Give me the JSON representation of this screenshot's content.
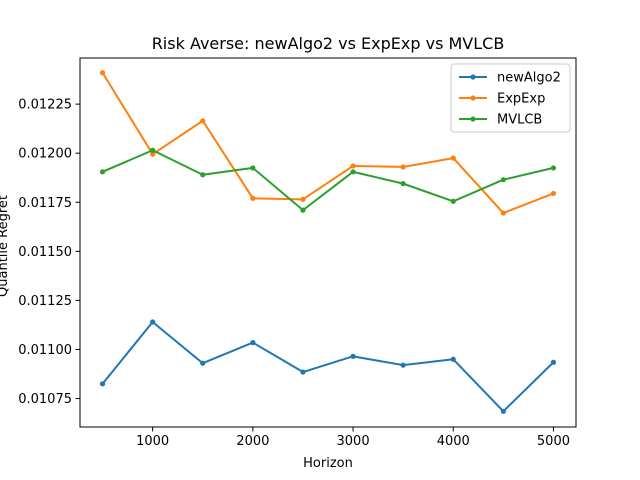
{
  "chart_data": {
    "type": "line",
    "title": "Risk Averse: newAlgo2 vs ExpExp vs MVLCB",
    "xlabel": "Horizon",
    "ylabel": "Quantile Regret",
    "xlim": [
      275,
      5225
    ],
    "ylim": [
      0.010605,
      0.012485
    ],
    "x_ticks": [
      1000,
      2000,
      3000,
      4000,
      5000
    ],
    "x_tick_labels": [
      "1000",
      "2000",
      "3000",
      "4000",
      "5000"
    ],
    "y_ticks": [
      0.01075,
      0.011,
      0.01125,
      0.0115,
      0.01175,
      0.012,
      0.01225
    ],
    "y_tick_labels": [
      "0.01075",
      "0.01100",
      "0.01125",
      "0.01150",
      "0.01175",
      "0.01200",
      "0.01225"
    ],
    "grid": false,
    "legend_position": "top-right",
    "x": [
      500,
      1000,
      1500,
      2000,
      2500,
      3000,
      3500,
      4000,
      4500,
      5000
    ],
    "series": [
      {
        "name": "newAlgo2",
        "color": "#1f77b4",
        "values": [
          0.010825,
          0.01114,
          0.01093,
          0.011035,
          0.010885,
          0.010965,
          0.01092,
          0.01095,
          0.010685,
          0.010935
        ]
      },
      {
        "name": "ExpExp",
        "color": "#ff7f0e",
        "values": [
          0.01241,
          0.011995,
          0.012165,
          0.01177,
          0.011765,
          0.011935,
          0.01193,
          0.011975,
          0.011695,
          0.011795
        ]
      },
      {
        "name": "MVLCB",
        "color": "#2ca02c",
        "values": [
          0.011905,
          0.012015,
          0.01189,
          0.011925,
          0.01171,
          0.011905,
          0.011845,
          0.011755,
          0.011865,
          0.011925
        ]
      }
    ]
  }
}
